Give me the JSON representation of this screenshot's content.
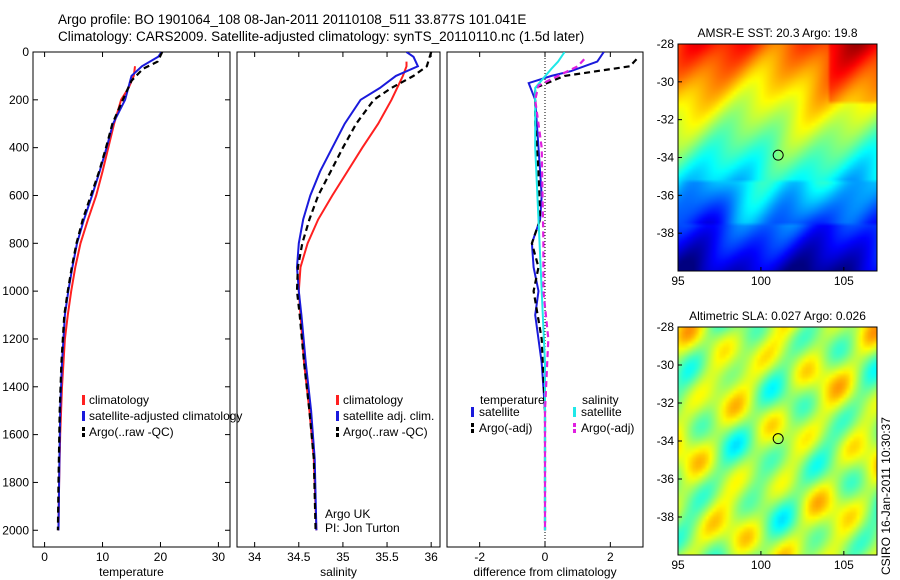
{
  "header": {
    "title_line1": "Argo profile: BO 1901064_108 08-Jan-2011 20110108_511 33.877S 101.041E",
    "title_line2": "Climatology: CARS2009. Satellite-adjusted climatology: synTS_20110110.nc (1.5d later)"
  },
  "side_label": "CSIRO 16-Jan-2011 10:30:37",
  "colors": {
    "red": "#ff2020",
    "blue": "#1a1adc",
    "black": "#000000",
    "cyan": "#20e8e8",
    "magenta": "#e020e0"
  },
  "chart_data": [
    {
      "type": "line",
      "name": "temperature-panel",
      "xlabel": "temperature",
      "ylabel": "",
      "xlim": [
        -2,
        32
      ],
      "ylim": [
        2070,
        0
      ],
      "xticks": [
        0,
        10,
        20,
        30
      ],
      "yticks": [
        0,
        200,
        400,
        600,
        800,
        1000,
        1200,
        1400,
        1600,
        1800,
        2000
      ],
      "legend": {
        "position": "lower-left",
        "entries": [
          "climatology",
          "satellite-adjusted climatology",
          "Argo(..raw -QC)"
        ]
      },
      "series": [
        {
          "name": "climatology",
          "color": "red",
          "dash": false,
          "x": [
            15.6,
            15.4,
            14.5,
            13.2,
            12.0,
            11.0,
            10.0,
            8.9,
            7.5,
            6.2,
            5.3,
            4.6,
            4.0,
            3.5,
            3.0,
            2.7,
            2.5,
            2.4
          ],
          "y": [
            60,
            100,
            150,
            200,
            300,
            400,
            500,
            600,
            700,
            800,
            900,
            1000,
            1100,
            1200,
            1400,
            1600,
            1800,
            2000
          ]
        },
        {
          "name": "satellite-adjusted climatology",
          "color": "blue",
          "dash": false,
          "x": [
            20.2,
            19.6,
            16.8,
            15.0,
            13.9,
            11.8,
            10.7,
            9.5,
            8.2,
            6.8,
            5.6,
            4.8,
            4.1,
            3.5,
            3.0,
            2.7,
            2.5,
            2.4
          ],
          "y": [
            0,
            20,
            60,
            100,
            200,
            300,
            400,
            500,
            600,
            700,
            800,
            900,
            1000,
            1100,
            1300,
            1500,
            1800,
            2000
          ]
        },
        {
          "name": "Argo(..raw -QC)",
          "color": "black",
          "dash": true,
          "x": [
            20.3,
            19.5,
            17.0,
            15.0,
            13.5,
            11.7,
            10.6,
            9.4,
            8.0,
            6.6,
            5.5,
            4.7,
            4.0,
            3.4,
            2.9,
            2.6,
            2.4,
            2.3
          ],
          "y": [
            0,
            40,
            70,
            120,
            200,
            300,
            400,
            500,
            600,
            700,
            800,
            900,
            1000,
            1100,
            1300,
            1500,
            1800,
            2000
          ]
        }
      ]
    },
    {
      "type": "line",
      "name": "salinity-panel",
      "xlabel": "salinity",
      "ylabel": "",
      "xlim": [
        33.8,
        36.1
      ],
      "ylim": [
        2070,
        0
      ],
      "xticks": [
        34,
        34.5,
        35,
        35.5,
        36
      ],
      "yticks": [],
      "legend": {
        "position": "lower-right",
        "entries": [
          "climatology",
          "satellite adj. clim.",
          "Argo(..raw -QC)"
        ]
      },
      "annotation": [
        "Argo UK",
        "PI: Jon Turton"
      ],
      "series": [
        {
          "name": "climatology",
          "color": "red",
          "dash": false,
          "x": [
            35.72,
            35.72,
            35.68,
            35.55,
            35.4,
            35.22,
            35.05,
            34.88,
            34.72,
            34.6,
            34.52,
            34.5,
            34.52,
            34.56,
            34.62,
            34.67,
            34.7
          ],
          "y": [
            40,
            60,
            100,
            200,
            300,
            400,
            500,
            600,
            700,
            800,
            900,
            1000,
            1100,
            1300,
            1500,
            1700,
            2000
          ]
        },
        {
          "name": "satellite adj. clim.",
          "color": "blue",
          "dash": false,
          "x": [
            35.72,
            35.8,
            35.85,
            35.6,
            35.42,
            35.2,
            35.02,
            34.88,
            34.74,
            34.63,
            34.55,
            34.5,
            34.48,
            34.5,
            34.53,
            34.58,
            34.64,
            34.68,
            34.7
          ],
          "y": [
            0,
            20,
            60,
            100,
            150,
            200,
            300,
            400,
            500,
            600,
            700,
            800,
            900,
            1000,
            1100,
            1300,
            1500,
            1700,
            2000
          ]
        },
        {
          "name": "Argo(..raw -QC)",
          "color": "black",
          "dash": true,
          "x": [
            36.0,
            35.95,
            35.8,
            35.55,
            35.35,
            35.15,
            35.0,
            34.86,
            34.72,
            34.62,
            34.54,
            34.49,
            34.48,
            34.51,
            34.56,
            34.62,
            34.67,
            34.69
          ],
          "y": [
            0,
            60,
            100,
            150,
            200,
            300,
            400,
            500,
            600,
            700,
            800,
            900,
            1000,
            1100,
            1300,
            1500,
            1700,
            2000
          ]
        }
      ]
    },
    {
      "type": "line",
      "name": "difference-panel",
      "xlabel": "difference from climatology",
      "ylabel": "",
      "xlim": [
        -3,
        3
      ],
      "ylim": [
        2070,
        0
      ],
      "xticks": [
        -2,
        0,
        2
      ],
      "yticks": [],
      "legend": {
        "position": "lower",
        "temperature_title": "temperature",
        "salinity_title": "salinity",
        "entries": [
          "satellite",
          "Argo(-adj)",
          "satellite",
          "Argo(-adj)"
        ]
      },
      "series": [
        {
          "name": "temperature satellite",
          "color": "blue",
          "dash": false,
          "x": [
            1.8,
            1.6,
            0.8,
            0.2,
            -0.5,
            -0.3,
            -0.2,
            -0.1,
            -0.15,
            -0.4,
            -0.35,
            -0.2,
            -0.3,
            -0.1,
            0.0,
            0.0,
            0.0
          ],
          "y": [
            0,
            40,
            80,
            100,
            130,
            200,
            400,
            600,
            700,
            800,
            900,
            1000,
            1100,
            1300,
            1500,
            1800,
            2000
          ]
        },
        {
          "name": "temperature Argo(-adj)",
          "color": "black",
          "dash": true,
          "x": [
            2.8,
            2.6,
            0.6,
            -0.3,
            -0.3,
            -0.2,
            -0.15,
            -0.4,
            -0.2,
            -0.35,
            -0.1,
            0.0,
            0.0
          ],
          "y": [
            30,
            60,
            100,
            150,
            300,
            500,
            700,
            800,
            900,
            1000,
            1200,
            1500,
            2000
          ]
        },
        {
          "name": "salinity satellite",
          "color": "cyan",
          "dash": false,
          "x": [
            0.6,
            0.4,
            0.2,
            -0.3,
            -0.3,
            -0.2,
            -0.1,
            0.0,
            0.0,
            0.0
          ],
          "y": [
            0,
            40,
            70,
            150,
            400,
            700,
            1000,
            1300,
            1600,
            2000
          ]
        },
        {
          "name": "salinity Argo(-adj)",
          "color": "magenta",
          "dash": true,
          "x": [
            1.2,
            1.0,
            -0.2,
            -0.3,
            -0.1,
            -0.05,
            -0.05,
            0.1,
            0.0,
            0.0
          ],
          "y": [
            30,
            60,
            140,
            200,
            400,
            800,
            1000,
            1200,
            1500,
            2000
          ]
        }
      ]
    },
    {
      "type": "heatmap",
      "name": "sst-map",
      "title": "AMSR-E SST: 20.3 Argo: 19.8",
      "xlim": [
        95,
        107
      ],
      "ylim": [
        -40,
        -28
      ],
      "xticks": [
        95,
        100,
        105
      ],
      "yticks": [
        -28,
        -30,
        -32,
        -34,
        -36,
        -38
      ],
      "marker": {
        "lon": 101.041,
        "lat": -33.877
      }
    },
    {
      "type": "heatmap",
      "name": "sla-map",
      "title": "Altimetric SLA: 0.027 Argo: 0.026",
      "xlim": [
        95,
        107
      ],
      "ylim": [
        -40,
        -28
      ],
      "xticks": [
        95,
        100,
        105
      ],
      "yticks": [
        -28,
        -30,
        -32,
        -34,
        -36,
        -38
      ],
      "marker": {
        "lon": 101.041,
        "lat": -33.877
      }
    }
  ]
}
